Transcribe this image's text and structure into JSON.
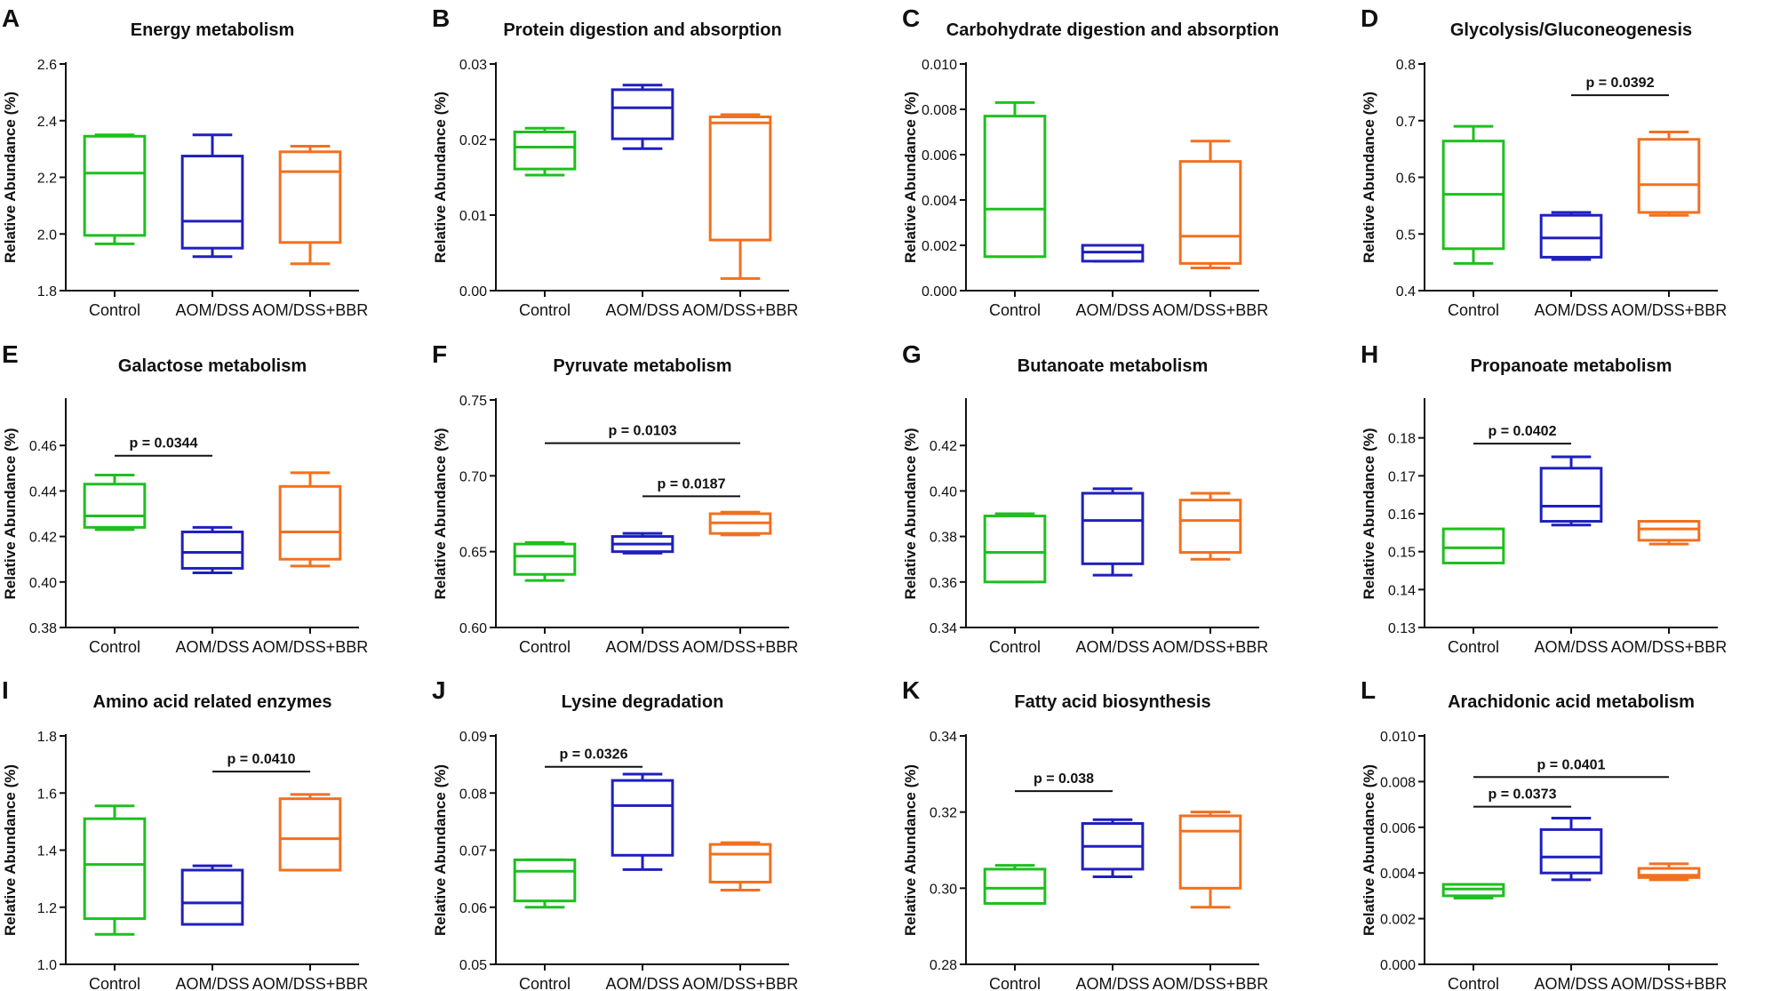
{
  "colors": {
    "Control": "#1fbf1f",
    "AOM/DSS": "#1f1fbf",
    "AOM/DSS+BBR": "#f2701f"
  },
  "chart_data": [
    {
      "type": "box",
      "letter": "A",
      "title": "Energy metabolism",
      "ylabel": "Relative Abundance (%)",
      "categories": [
        "Control",
        "AOM/DSS",
        "AOM/DSS+BBR"
      ],
      "ylim": [
        1.8,
        2.6
      ],
      "yticks": [
        "1.8",
        "2.0",
        "2.2",
        "2.4",
        "2.6"
      ],
      "ytick_values": [
        1.8,
        2.0,
        2.2,
        2.4,
        2.6
      ],
      "boxes": [
        {
          "min": 1.965,
          "q1": 1.995,
          "median": 2.215,
          "q3": 2.345,
          "max": 2.35
        },
        {
          "min": 1.92,
          "q1": 1.95,
          "median": 2.045,
          "q3": 2.275,
          "max": 2.35
        },
        {
          "min": 1.895,
          "q1": 1.97,
          "median": 2.22,
          "q3": 2.29,
          "max": 2.31
        }
      ],
      "annotations": []
    },
    {
      "type": "box",
      "letter": "B",
      "title": "Protein digestion and absorption",
      "ylabel": "Relative Abundance (%)",
      "categories": [
        "Control",
        "AOM/DSS",
        "AOM/DSS+BBR"
      ],
      "ylim": [
        0,
        0.03
      ],
      "yticks": [
        "0.00",
        "0.01",
        "0.02",
        "0.03"
      ],
      "ytick_values": [
        0,
        0.01,
        0.02,
        0.03
      ],
      "boxes": [
        {
          "min": 0.0153,
          "q1": 0.0161,
          "median": 0.019,
          "q3": 0.021,
          "max": 0.0215
        },
        {
          "min": 0.0188,
          "q1": 0.0201,
          "median": 0.0242,
          "q3": 0.0266,
          "max": 0.0272
        },
        {
          "min": 0.0016,
          "q1": 0.0067,
          "median": 0.0222,
          "q3": 0.023,
          "max": 0.0233
        }
      ],
      "annotations": []
    },
    {
      "type": "box",
      "letter": "C",
      "title": "Carbohydrate digestion and absorption",
      "ylabel": "Relative Abundance (%)",
      "categories": [
        "Control",
        "AOM/DSS",
        "AOM/DSS+BBR"
      ],
      "ylim": [
        0,
        0.01
      ],
      "yticks": [
        "0.000",
        "0.002",
        "0.004",
        "0.006",
        "0.008",
        "0.010"
      ],
      "ytick_values": [
        0,
        0.002,
        0.004,
        0.006,
        0.008,
        0.01
      ],
      "boxes": [
        {
          "min": 0.0015,
          "q1": 0.0015,
          "median": 0.0036,
          "q3": 0.0077,
          "max": 0.0083
        },
        {
          "min": 0.0013,
          "q1": 0.0013,
          "median": 0.0017,
          "q3": 0.002,
          "max": 0.002
        },
        {
          "min": 0.001,
          "q1": 0.0012,
          "median": 0.0024,
          "q3": 0.0057,
          "max": 0.0066
        }
      ],
      "annotations": []
    },
    {
      "type": "box",
      "letter": "D",
      "title": "Glycolysis/Gluconeogenesis",
      "ylabel": "Relative Abundance (%)",
      "categories": [
        "Control",
        "AOM/DSS",
        "AOM/DSS+BBR"
      ],
      "ylim": [
        0.4,
        0.8
      ],
      "yticks": [
        "0.4",
        "0.5",
        "0.6",
        "0.7",
        "0.8"
      ],
      "ytick_values": [
        0.4,
        0.5,
        0.6,
        0.7,
        0.8
      ],
      "boxes": [
        {
          "min": 0.448,
          "q1": 0.474,
          "median": 0.57,
          "q3": 0.664,
          "max": 0.69
        },
        {
          "min": 0.455,
          "q1": 0.459,
          "median": 0.493,
          "q3": 0.533,
          "max": 0.538
        },
        {
          "min": 0.533,
          "q1": 0.538,
          "median": 0.587,
          "q3": 0.667,
          "max": 0.68
        }
      ],
      "annotations": [
        {
          "from": 1,
          "to": 2,
          "y": 0.745,
          "label": "p = 0.0392"
        }
      ]
    },
    {
      "type": "box",
      "letter": "E",
      "title": "Galactose metabolism",
      "ylabel": "Relative Abundance (%)",
      "categories": [
        "Control",
        "AOM/DSS",
        "AOM/DSS+BBR"
      ],
      "ylim": [
        0.38,
        0.48
      ],
      "yticks": [
        "0.38",
        "0.40",
        "0.42",
        "0.44",
        "0.46"
      ],
      "ytick_values": [
        0.38,
        0.4,
        0.42,
        0.44,
        0.46
      ],
      "boxes": [
        {
          "min": 0.423,
          "q1": 0.424,
          "median": 0.429,
          "q3": 0.443,
          "max": 0.447
        },
        {
          "min": 0.404,
          "q1": 0.406,
          "median": 0.413,
          "q3": 0.422,
          "max": 0.424
        },
        {
          "min": 0.407,
          "q1": 0.41,
          "median": 0.422,
          "q3": 0.442,
          "max": 0.448
        }
      ],
      "annotations": [
        {
          "from": 0,
          "to": 1,
          "y": 0.4555,
          "label": "p = 0.0344"
        }
      ]
    },
    {
      "type": "box",
      "letter": "F",
      "title": "Pyruvate metabolism",
      "ylabel": "Relative Abundance (%)",
      "categories": [
        "Control",
        "AOM/DSS",
        "AOM/DSS+BBR"
      ],
      "ylim": [
        0.6,
        0.75
      ],
      "yticks": [
        "0.60",
        "0.65",
        "0.70",
        "0.75"
      ],
      "ytick_values": [
        0.6,
        0.65,
        0.7,
        0.75
      ],
      "boxes": [
        {
          "min": 0.631,
          "q1": 0.635,
          "median": 0.647,
          "q3": 0.655,
          "max": 0.656
        },
        {
          "min": 0.649,
          "q1": 0.65,
          "median": 0.655,
          "q3": 0.66,
          "max": 0.662
        },
        {
          "min": 0.661,
          "q1": 0.662,
          "median": 0.669,
          "q3": 0.675,
          "max": 0.676
        }
      ],
      "annotations": [
        {
          "from": 0,
          "to": 2,
          "y": 0.7215,
          "label": "p = 0.0103"
        },
        {
          "from": 1,
          "to": 2,
          "y": 0.6865,
          "label": "p = 0.0187"
        }
      ]
    },
    {
      "type": "box",
      "letter": "G",
      "title": "Butanoate metabolism",
      "ylabel": "Relative Abundance (%)",
      "categories": [
        "Control",
        "AOM/DSS",
        "AOM/DSS+BBR"
      ],
      "ylim": [
        0.34,
        0.44
      ],
      "yticks": [
        "0.34",
        "0.36",
        "0.38",
        "0.40",
        "0.42"
      ],
      "ytick_values": [
        0.34,
        0.36,
        0.38,
        0.4,
        0.42
      ],
      "boxes": [
        {
          "min": 0.36,
          "q1": 0.36,
          "median": 0.373,
          "q3": 0.389,
          "max": 0.39
        },
        {
          "min": 0.363,
          "q1": 0.368,
          "median": 0.387,
          "q3": 0.399,
          "max": 0.401
        },
        {
          "min": 0.37,
          "q1": 0.373,
          "median": 0.387,
          "q3": 0.396,
          "max": 0.399
        }
      ],
      "annotations": []
    },
    {
      "type": "box",
      "letter": "H",
      "title": "Propanoate metabolism",
      "ylabel": "Relative Abundance (%)",
      "categories": [
        "Control",
        "AOM/DSS",
        "AOM/DSS+BBR"
      ],
      "ylim": [
        0.13,
        0.19
      ],
      "yticks": [
        "0.13",
        "0.14",
        "0.15",
        "0.16",
        "0.17",
        "0.18"
      ],
      "ytick_values": [
        0.13,
        0.14,
        0.15,
        0.16,
        0.17,
        0.18
      ],
      "boxes": [
        {
          "min": 0.147,
          "q1": 0.147,
          "median": 0.151,
          "q3": 0.156,
          "max": 0.156
        },
        {
          "min": 0.157,
          "q1": 0.158,
          "median": 0.162,
          "q3": 0.172,
          "max": 0.175
        },
        {
          "min": 0.152,
          "q1": 0.153,
          "median": 0.156,
          "q3": 0.158,
          "max": 0.158
        }
      ],
      "annotations": [
        {
          "from": 0,
          "to": 1,
          "y": 0.1785,
          "label": "p = 0.0402"
        }
      ]
    },
    {
      "type": "box",
      "letter": "I",
      "title": "Amino acid related enzymes",
      "ylabel": "Relative Abundance (%)",
      "categories": [
        "Control",
        "AOM/DSS",
        "AOM/DSS+BBR"
      ],
      "ylim": [
        1.0,
        1.8
      ],
      "yticks": [
        "1.0",
        "1.2",
        "1.4",
        "1.6",
        "1.8"
      ],
      "ytick_values": [
        1.0,
        1.2,
        1.4,
        1.6,
        1.8
      ],
      "boxes": [
        {
          "min": 1.105,
          "q1": 1.16,
          "median": 1.35,
          "q3": 1.51,
          "max": 1.555
        },
        {
          "min": 1.14,
          "q1": 1.14,
          "median": 1.215,
          "q3": 1.33,
          "max": 1.345
        },
        {
          "min": 1.33,
          "q1": 1.33,
          "median": 1.44,
          "q3": 1.58,
          "max": 1.595
        }
      ],
      "annotations": [
        {
          "from": 1,
          "to": 2,
          "y": 1.675,
          "label": "p = 0.0410"
        }
      ]
    },
    {
      "type": "box",
      "letter": "J",
      "title": "Lysine degradation",
      "ylabel": "Relative Abundance (%)",
      "categories": [
        "Control",
        "AOM/DSS",
        "AOM/DSS+BBR"
      ],
      "ylim": [
        0.05,
        0.09
      ],
      "yticks": [
        "0.05",
        "0.06",
        "0.07",
        "0.08",
        "0.09"
      ],
      "ytick_values": [
        0.05,
        0.06,
        0.07,
        0.08,
        0.09
      ],
      "boxes": [
        {
          "min": 0.06,
          "q1": 0.0611,
          "median": 0.0663,
          "q3": 0.0683,
          "max": 0.0683
        },
        {
          "min": 0.0666,
          "q1": 0.0691,
          "median": 0.0778,
          "q3": 0.0822,
          "max": 0.0833
        },
        {
          "min": 0.063,
          "q1": 0.0644,
          "median": 0.0693,
          "q3": 0.071,
          "max": 0.0713
        }
      ],
      "annotations": [
        {
          "from": 0,
          "to": 1,
          "y": 0.0846,
          "label": "p = 0.0326"
        }
      ]
    },
    {
      "type": "box",
      "letter": "K",
      "title": "Fatty acid biosynthesis",
      "ylabel": "Relative Abundance (%)",
      "categories": [
        "Control",
        "AOM/DSS",
        "AOM/DSS+BBR"
      ],
      "ylim": [
        0.28,
        0.34
      ],
      "yticks": [
        "0.28",
        "0.30",
        "0.32",
        "0.34"
      ],
      "ytick_values": [
        0.28,
        0.3,
        0.32,
        0.34
      ],
      "boxes": [
        {
          "min": 0.296,
          "q1": 0.296,
          "median": 0.3,
          "q3": 0.305,
          "max": 0.306
        },
        {
          "min": 0.303,
          "q1": 0.305,
          "median": 0.311,
          "q3": 0.317,
          "max": 0.318
        },
        {
          "min": 0.295,
          "q1": 0.3,
          "median": 0.315,
          "q3": 0.319,
          "max": 0.32
        }
      ],
      "annotations": [
        {
          "from": 0,
          "to": 1,
          "y": 0.3255,
          "label": "p = 0.038"
        }
      ]
    },
    {
      "type": "box",
      "letter": "L",
      "title": "Arachidonic acid metabolism",
      "ylabel": "Relative Abundance (%)",
      "categories": [
        "Control",
        "AOM/DSS",
        "AOM/DSS+BBR"
      ],
      "ylim": [
        0,
        0.01
      ],
      "yticks": [
        "0.000",
        "0.002",
        "0.004",
        "0.006",
        "0.008",
        "0.010"
      ],
      "ytick_values": [
        0,
        0.002,
        0.004,
        0.006,
        0.008,
        0.01
      ],
      "boxes": [
        {
          "min": 0.0029,
          "q1": 0.003,
          "median": 0.0033,
          "q3": 0.0035,
          "max": 0.0035
        },
        {
          "min": 0.0037,
          "q1": 0.004,
          "median": 0.0047,
          "q3": 0.0059,
          "max": 0.0064
        },
        {
          "min": 0.0037,
          "q1": 0.0038,
          "median": 0.0039,
          "q3": 0.0042,
          "max": 0.0044
        }
      ],
      "annotations": [
        {
          "from": 0,
          "to": 2,
          "y": 0.0082,
          "label": "p = 0.0401"
        },
        {
          "from": 0,
          "to": 1,
          "y": 0.0069,
          "label": "p = 0.0373"
        }
      ]
    }
  ]
}
